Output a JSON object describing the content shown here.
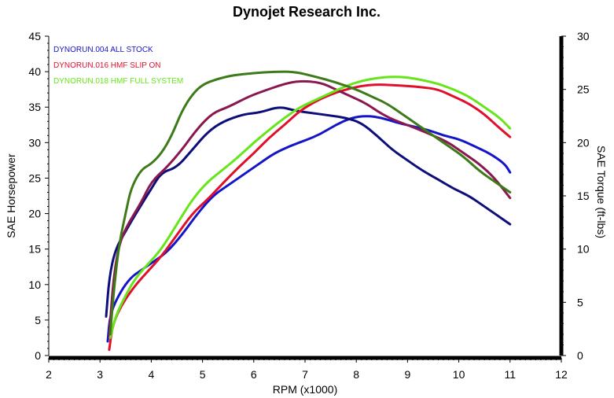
{
  "chart_data": {
    "type": "line",
    "title": "Dynojet Research Inc.",
    "xlabel": "RPM (x1000)",
    "ylabel": "SAE Horsepower",
    "ylabel_right": "SAE Torque (ft-lbs)",
    "xlim": [
      2,
      12
    ],
    "ylim": [
      0,
      45
    ],
    "ylim_right": [
      0,
      30
    ],
    "x_ticks": [
      "2",
      "3",
      "4",
      "5",
      "6",
      "7",
      "8",
      "9",
      "10",
      "11",
      "12"
    ],
    "y_ticks": [
      "0",
      "5",
      "10",
      "15",
      "20",
      "25",
      "30",
      "35",
      "40",
      "45"
    ],
    "y_ticks_right": [
      "0",
      "5",
      "10",
      "15",
      "20",
      "25",
      "30"
    ],
    "legend_position": "top-left",
    "series": [
      {
        "name": "DYNORUN.004    ALL STOCK",
        "kind": "hp",
        "color": "#1515c8",
        "points": [
          [
            3.15,
            2
          ],
          [
            3.2,
            6
          ],
          [
            3.4,
            9
          ],
          [
            3.6,
            11
          ],
          [
            3.8,
            12
          ],
          [
            4.0,
            13
          ],
          [
            4.3,
            14.5
          ],
          [
            4.6,
            17
          ],
          [
            4.9,
            20
          ],
          [
            5.2,
            22.5
          ],
          [
            5.5,
            24
          ],
          [
            5.8,
            25.5
          ],
          [
            6.1,
            27
          ],
          [
            6.4,
            28.5
          ],
          [
            6.7,
            29.5
          ],
          [
            7.0,
            30.3
          ],
          [
            7.3,
            31.2
          ],
          [
            7.6,
            32.5
          ],
          [
            7.9,
            33.5
          ],
          [
            8.2,
            33.8
          ],
          [
            8.5,
            33.5
          ],
          [
            8.8,
            32.8
          ],
          [
            9.1,
            32.3
          ],
          [
            9.4,
            31.8
          ],
          [
            9.7,
            31
          ],
          [
            10.0,
            30.5
          ],
          [
            10.3,
            29.5
          ],
          [
            10.6,
            28.5
          ],
          [
            10.9,
            27
          ],
          [
            11.0,
            25.8
          ]
        ]
      },
      {
        "name": "DYNORUN.004    ALL STOCK",
        "kind": "torque",
        "color": "#0e0e7a",
        "points": [
          [
            3.12,
            5.5
          ],
          [
            3.18,
            11
          ],
          [
            3.3,
            15
          ],
          [
            3.5,
            17.5
          ],
          [
            3.7,
            20
          ],
          [
            4.0,
            23.5
          ],
          [
            4.2,
            25.8
          ],
          [
            4.5,
            26.5
          ],
          [
            4.8,
            29
          ],
          [
            5.1,
            31.5
          ],
          [
            5.4,
            33
          ],
          [
            5.8,
            34
          ],
          [
            6.1,
            34.2
          ],
          [
            6.5,
            35.1
          ],
          [
            6.8,
            34.5
          ],
          [
            7.1,
            34.2
          ],
          [
            7.5,
            33.8
          ],
          [
            7.8,
            33.5
          ],
          [
            8.1,
            32.8
          ],
          [
            8.4,
            31
          ],
          [
            8.7,
            29
          ],
          [
            9.0,
            27.5
          ],
          [
            9.3,
            26
          ],
          [
            9.6,
            24.8
          ],
          [
            9.9,
            23.5
          ],
          [
            10.2,
            22.5
          ],
          [
            10.5,
            21
          ],
          [
            10.8,
            19.5
          ],
          [
            11.0,
            18.5
          ]
        ]
      },
      {
        "name": "DYNORUN.016    HMF SLIP ON",
        "kind": "hp",
        "color": "#e0102c",
        "points": [
          [
            3.18,
            0.8
          ],
          [
            3.25,
            4.5
          ],
          [
            3.45,
            7.5
          ],
          [
            3.7,
            10
          ],
          [
            3.95,
            12
          ],
          [
            4.2,
            14
          ],
          [
            4.5,
            17
          ],
          [
            4.8,
            20
          ],
          [
            5.1,
            22
          ],
          [
            5.4,
            24.3
          ],
          [
            5.7,
            26.5
          ],
          [
            6.0,
            28.5
          ],
          [
            6.3,
            30.7
          ],
          [
            6.6,
            32.5
          ],
          [
            6.9,
            34.5
          ],
          [
            7.2,
            35.8
          ],
          [
            7.5,
            36.8
          ],
          [
            7.8,
            37.5
          ],
          [
            8.1,
            38
          ],
          [
            8.4,
            38.2
          ],
          [
            8.7,
            38.1
          ],
          [
            9.0,
            38
          ],
          [
            9.3,
            37.8
          ],
          [
            9.6,
            37.5
          ],
          [
            9.9,
            36.5
          ],
          [
            10.2,
            35.5
          ],
          [
            10.5,
            34
          ],
          [
            10.8,
            32
          ],
          [
            11.0,
            30.8
          ]
        ]
      },
      {
        "name": "DYNORUN.016    HMF SLIP ON",
        "kind": "torque",
        "color": "#8a1850",
        "points": [
          [
            3.18,
            2.5
          ],
          [
            3.25,
            10
          ],
          [
            3.35,
            15
          ],
          [
            3.5,
            18
          ],
          [
            3.8,
            21.5
          ],
          [
            4.0,
            24.5
          ],
          [
            4.3,
            26.5
          ],
          [
            4.6,
            29
          ],
          [
            4.9,
            32
          ],
          [
            5.2,
            34.2
          ],
          [
            5.5,
            35
          ],
          [
            5.9,
            36.5
          ],
          [
            6.2,
            37.3
          ],
          [
            6.6,
            38.3
          ],
          [
            6.9,
            38.7
          ],
          [
            7.3,
            38.5
          ],
          [
            7.6,
            37.5
          ],
          [
            7.9,
            36.5
          ],
          [
            8.2,
            35.5
          ],
          [
            8.5,
            34
          ],
          [
            8.8,
            33
          ],
          [
            9.1,
            32.2
          ],
          [
            9.5,
            31
          ],
          [
            9.8,
            30
          ],
          [
            10.1,
            28.5
          ],
          [
            10.4,
            27
          ],
          [
            10.7,
            25
          ],
          [
            11.0,
            22.2
          ]
        ]
      },
      {
        "name": "DYNORUN.018    HMF FULL SYSTEM",
        "kind": "hp",
        "color": "#66e61a",
        "points": [
          [
            3.2,
            2.5
          ],
          [
            3.3,
            5.5
          ],
          [
            3.5,
            8.5
          ],
          [
            3.7,
            11
          ],
          [
            3.95,
            13
          ],
          [
            4.2,
            15
          ],
          [
            4.5,
            18.5
          ],
          [
            4.8,
            22
          ],
          [
            5.1,
            24.5
          ],
          [
            5.4,
            26.2
          ],
          [
            5.7,
            28
          ],
          [
            6.0,
            30
          ],
          [
            6.3,
            31.8
          ],
          [
            6.6,
            33.5
          ],
          [
            6.9,
            35
          ],
          [
            7.2,
            36
          ],
          [
            7.5,
            37
          ],
          [
            7.8,
            38
          ],
          [
            8.1,
            38.7
          ],
          [
            8.4,
            39.1
          ],
          [
            8.7,
            39.3
          ],
          [
            9.0,
            39.2
          ],
          [
            9.3,
            38.8
          ],
          [
            9.6,
            38.3
          ],
          [
            9.9,
            37.5
          ],
          [
            10.2,
            36.5
          ],
          [
            10.5,
            35
          ],
          [
            10.8,
            33.5
          ],
          [
            11.0,
            32
          ]
        ]
      },
      {
        "name": "DYNORUN.018    HMF FULL SYSTEM",
        "kind": "torque",
        "color": "#3d7a18",
        "points": [
          [
            3.2,
            3
          ],
          [
            3.28,
            10
          ],
          [
            3.38,
            16
          ],
          [
            3.5,
            20
          ],
          [
            3.6,
            23.5
          ],
          [
            3.8,
            26.2
          ],
          [
            4.0,
            27
          ],
          [
            4.2,
            28.5
          ],
          [
            4.4,
            31
          ],
          [
            4.6,
            34.5
          ],
          [
            4.8,
            36.8
          ],
          [
            5.0,
            38.2
          ],
          [
            5.3,
            39
          ],
          [
            5.6,
            39.5
          ],
          [
            6.0,
            39.8
          ],
          [
            6.4,
            40
          ],
          [
            6.8,
            40
          ],
          [
            7.2,
            39.3
          ],
          [
            7.6,
            38.5
          ],
          [
            8.0,
            37.5
          ],
          [
            8.3,
            36.5
          ],
          [
            8.6,
            35.5
          ],
          [
            8.9,
            34
          ],
          [
            9.2,
            32.5
          ],
          [
            9.5,
            31
          ],
          [
            9.8,
            29.5
          ],
          [
            10.1,
            28
          ],
          [
            10.4,
            26
          ],
          [
            10.7,
            24.5
          ],
          [
            11.0,
            23
          ]
        ]
      }
    ]
  }
}
